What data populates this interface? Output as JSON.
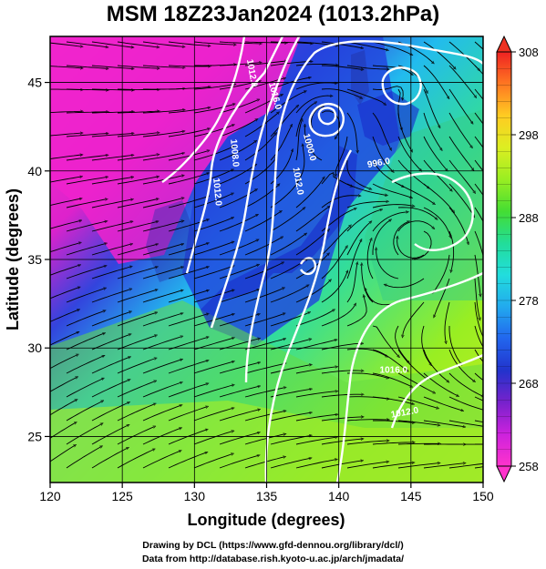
{
  "title": "MSM 18Z23Jan2024 (1013.2hPa)",
  "map": {
    "type": "streamline-map",
    "xlabel": "Longitude (degrees)",
    "ylabel": "Latitude  (degrees)",
    "xlim": [
      120,
      150
    ],
    "ylim": [
      22.4,
      47.6
    ],
    "xticks": [
      120,
      125,
      130,
      135,
      140,
      145,
      150
    ],
    "yticks": [
      25,
      30,
      35,
      40,
      45
    ],
    "grid": true,
    "contour_color": "#ffffff",
    "contour_labels": [
      {
        "text": "1012.0",
        "lon": 133.8,
        "lat": 45.5,
        "rot": 80
      },
      {
        "text": "1016.0",
        "lon": 135.4,
        "lat": 44.2,
        "rot": 75
      },
      {
        "text": "1008.0",
        "lon": 132.6,
        "lat": 41.0,
        "rot": 85
      },
      {
        "text": "1012.0",
        "lon": 131.4,
        "lat": 38.8,
        "rot": 85
      },
      {
        "text": "1000.0",
        "lon": 137.8,
        "lat": 41.3,
        "rot": 75
      },
      {
        "text": "1012.0",
        "lon": 137.0,
        "lat": 39.4,
        "rot": 80
      },
      {
        "text": "996.0",
        "lon": 142.8,
        "lat": 40.3,
        "rot": -10
      },
      {
        "text": "1016.0",
        "lon": 143.8,
        "lat": 28.6,
        "rot": 0
      },
      {
        "text": "1012.0",
        "lon": 144.6,
        "lat": 26.2,
        "rot": -10
      }
    ]
  },
  "colorbar": {
    "ticks": [
      258,
      268,
      278,
      288,
      298,
      308
    ],
    "min": 258,
    "max": 308,
    "colors": [
      "#ff33cc",
      "#cc22dd",
      "#7722cc",
      "#2233cc",
      "#2266ee",
      "#22aaee",
      "#22dddd",
      "#22dd99",
      "#44dd33",
      "#99ee22",
      "#ddee22",
      "#ffcc22",
      "#ff7722",
      "#ee2222"
    ]
  },
  "credits": [
    "Drawing by DCL (https://www.gfd-dennou.org/library/dcl/)",
    "Data from http://database.rish.kyoto-u.ac.jp/arch/jmadata/"
  ]
}
